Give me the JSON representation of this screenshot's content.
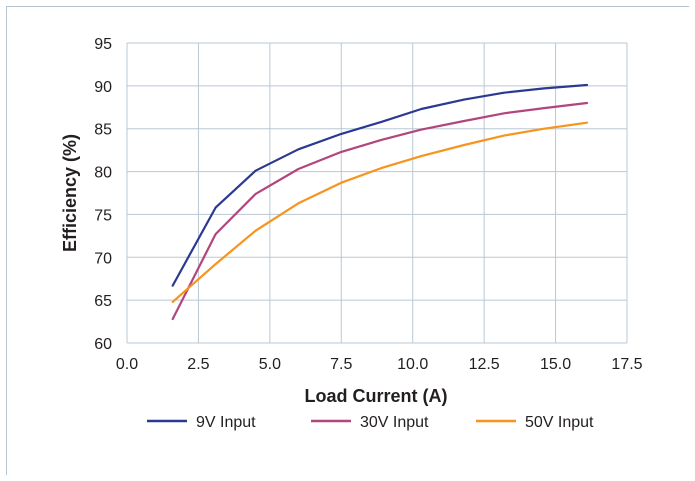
{
  "chart_data": {
    "type": "line",
    "xlabel": "Load Current (A)",
    "ylabel": "Efficiency (%)",
    "xlim": [
      0,
      17.5
    ],
    "ylim": [
      60,
      95
    ],
    "xticks": [
      "0.0",
      "2.5",
      "5.0",
      "7.5",
      "10.0",
      "12.5",
      "15.0",
      "17.5"
    ],
    "yticks": [
      "60",
      "65",
      "70",
      "75",
      "80",
      "85",
      "90",
      "95"
    ],
    "grid": true,
    "legend_position": "bottom",
    "series": [
      {
        "name": "9V Input",
        "color": "#2b3990",
        "x": [
          1.6,
          3.1,
          4.5,
          6.0,
          7.5,
          8.9,
          10.3,
          11.8,
          13.2,
          14.6,
          16.1
        ],
        "y": [
          66.7,
          75.8,
          80.1,
          82.6,
          84.4,
          85.8,
          87.3,
          88.4,
          89.2,
          89.7,
          90.1
        ]
      },
      {
        "name": "30V Input",
        "color": "#b1457d",
        "x": [
          1.6,
          3.1,
          4.5,
          6.0,
          7.5,
          8.9,
          10.3,
          11.8,
          13.2,
          14.6,
          16.1
        ],
        "y": [
          62.8,
          72.7,
          77.4,
          80.3,
          82.3,
          83.7,
          84.9,
          85.9,
          86.8,
          87.4,
          88.0
        ]
      },
      {
        "name": "50V Input",
        "color": "#f7941d",
        "x": [
          1.6,
          3.1,
          4.5,
          6.0,
          7.5,
          8.9,
          10.3,
          11.8,
          13.2,
          14.6,
          16.1
        ],
        "y": [
          64.8,
          69.2,
          73.1,
          76.3,
          78.7,
          80.4,
          81.8,
          83.1,
          84.2,
          85.0,
          85.7
        ]
      }
    ]
  }
}
